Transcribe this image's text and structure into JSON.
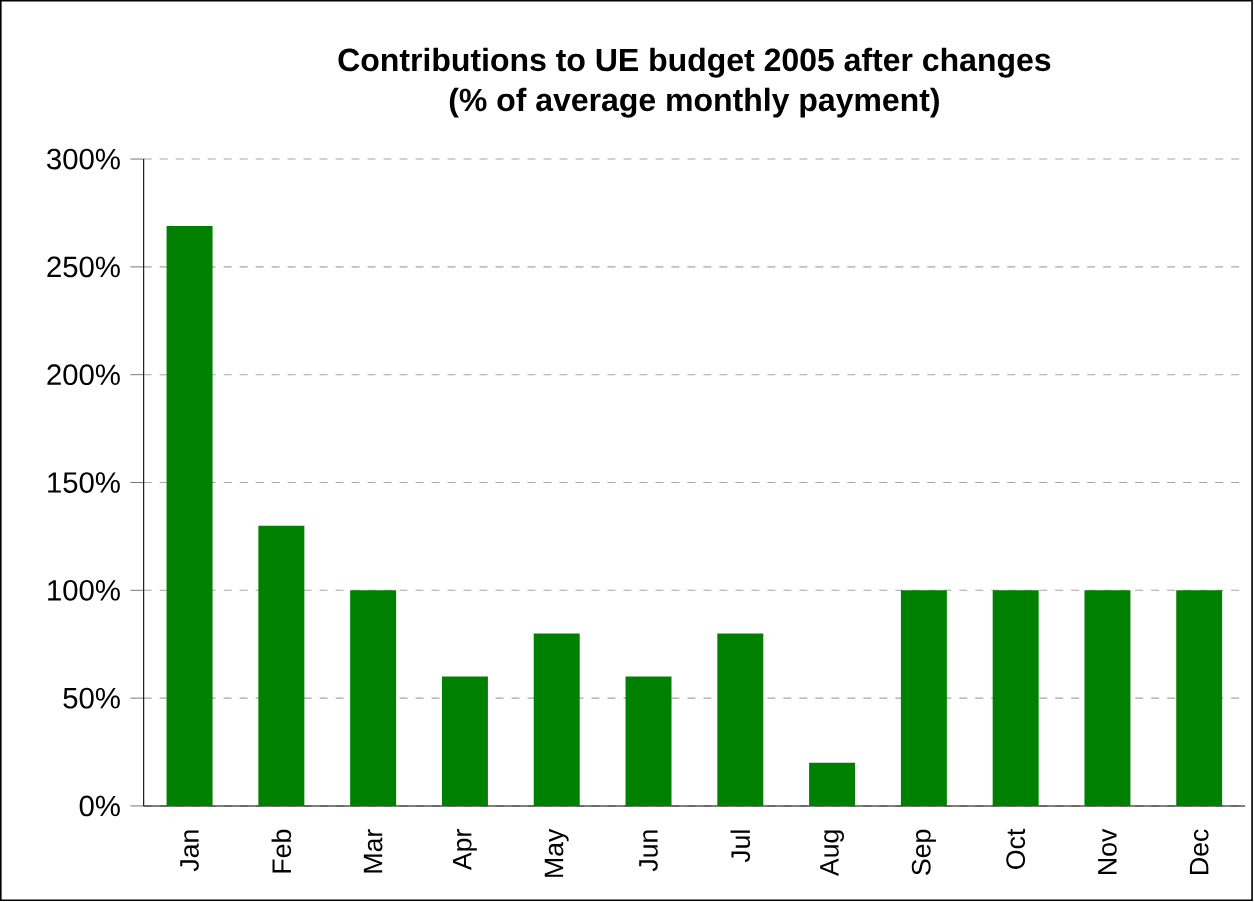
{
  "chart_data": {
    "type": "bar",
    "title": "Contributions to UE budget 2005 after changes",
    "subtitle": "(% of average monthly payment)",
    "categories": [
      "Jan",
      "Feb",
      "Mar",
      "Apr",
      "May",
      "Jun",
      "Jul",
      "Aug",
      "Sep",
      "Oct",
      "Nov",
      "Dec"
    ],
    "values": [
      269,
      130,
      100,
      60,
      80,
      60,
      80,
      20,
      100,
      100,
      100,
      100
    ],
    "color": "#008000",
    "ylim": [
      0,
      300
    ],
    "yticks": [
      {
        "value": 0,
        "label": "0%"
      },
      {
        "value": 50,
        "label": "50%"
      },
      {
        "value": 100,
        "label": "100%"
      },
      {
        "value": 150,
        "label": "150%"
      },
      {
        "value": 200,
        "label": "200%"
      },
      {
        "value": 250,
        "label": "250%"
      },
      {
        "value": 300,
        "label": "300%"
      }
    ],
    "grid": "y"
  }
}
